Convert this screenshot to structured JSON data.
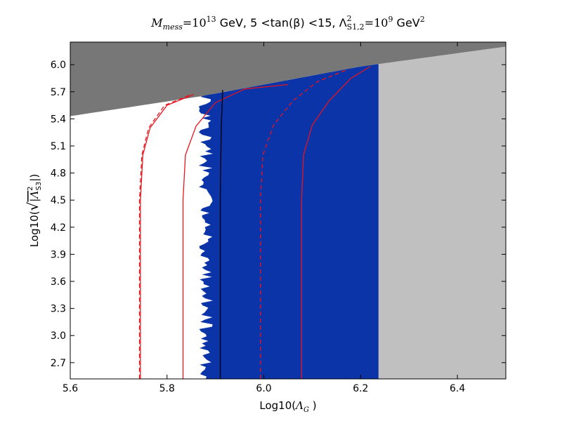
{
  "chart_data": {
    "type": "scatter",
    "title": "M_mess = 10^13 GeV, 5 < tan(β) < 15, Λ²_S1,2 = 10^9 GeV²",
    "title_parts": {
      "m_sym": "M",
      "m_sub": "mess",
      "eq1": "=10",
      "exp1": "13",
      "gev1": " GeV, 5 <tan(β) <15, Λ",
      "lam_sup": "2",
      "lam_sub": "S1,2",
      "eq2": "=10",
      "exp2": "9",
      "gev2": " GeV",
      "gev2_sup": "2"
    },
    "xlabel": "Log10(Λ_G )",
    "xlabel_parts": {
      "pre": "Log10(",
      "sym": "Λ",
      "sub": "G",
      "post": " )"
    },
    "ylabel": "Log10(√|Λ²_S3|)",
    "ylabel_parts": {
      "pre": "Log10(",
      "sym": "|Λ",
      "sup": "2",
      "sub": "S3",
      "post": "|)"
    },
    "xlim": [
      5.6,
      6.5
    ],
    "ylim": [
      2.52,
      6.25
    ],
    "xticks": [
      "5.6",
      "5.8",
      "6.0",
      "6.2",
      "6.4"
    ],
    "xtick_values": [
      5.6,
      5.8,
      6.0,
      6.2,
      6.4
    ],
    "yticks": [
      "2.7",
      "3.0",
      "3.3",
      "3.6",
      "3.9",
      "4.2",
      "4.5",
      "4.8",
      "5.1",
      "5.4",
      "5.7",
      "6.0"
    ],
    "ytick_values": [
      2.7,
      3.0,
      3.3,
      3.6,
      3.9,
      4.2,
      4.5,
      4.8,
      5.1,
      5.4,
      5.7,
      6.0
    ],
    "colors": {
      "excluded_dark": "#777777",
      "excluded_light": "#c0c0c0",
      "allowed_region": "#0a34a8",
      "contour": "#e8141e",
      "black_line": "#000000"
    },
    "regions": [
      {
        "color": "#777777",
        "boundary_x": [
          5.6,
          5.87,
          6.2,
          6.5
        ],
        "boundary_y": [
          5.43,
          5.65,
          5.98,
          6.2
        ]
      },
      {
        "color": "#c0c0c0",
        "x_min": 6.237,
        "x_max": 6.5
      },
      {
        "color": "#0a34a8",
        "x_left_min": 5.865,
        "x_left_max": 5.895,
        "x_right": 6.237
      }
    ],
    "series": [
      {
        "style": "solid",
        "color": "#e8141e",
        "x": [
          5.745,
          5.745,
          5.745,
          5.75,
          5.765,
          5.8,
          5.855
        ],
        "y": [
          2.52,
          3.5,
          4.5,
          5.0,
          5.3,
          5.55,
          5.67
        ]
      },
      {
        "style": "dashed",
        "color": "#e8141e",
        "x": [
          5.743,
          5.743,
          5.743,
          5.748,
          5.762,
          5.795,
          5.85
        ],
        "y": [
          2.52,
          3.5,
          4.5,
          5.0,
          5.3,
          5.55,
          5.67
        ]
      },
      {
        "style": "solid",
        "color": "#e8141e",
        "x": [
          5.833,
          5.833,
          5.833,
          5.838,
          5.86,
          5.9,
          5.96,
          6.05
        ],
        "y": [
          2.52,
          3.5,
          4.5,
          5.0,
          5.32,
          5.58,
          5.73,
          5.78
        ]
      },
      {
        "style": "dashed",
        "color": "#e8141e",
        "x": [
          5.993,
          5.993,
          5.993,
          5.998,
          6.02,
          6.06,
          6.11,
          6.17
        ],
        "y": [
          2.52,
          3.5,
          4.5,
          5.0,
          5.33,
          5.6,
          5.81,
          5.94
        ]
      },
      {
        "style": "solid",
        "color": "#e8141e",
        "x": [
          6.078,
          6.078,
          6.078,
          6.082,
          6.1,
          6.135,
          6.18,
          6.22
        ],
        "y": [
          2.52,
          3.5,
          4.5,
          5.0,
          5.33,
          5.6,
          5.85,
          5.98
        ]
      },
      {
        "style": "solid",
        "color": "#000000",
        "x": [
          5.91,
          5.91,
          5.912,
          5.915
        ],
        "y": [
          2.52,
          4.5,
          5.3,
          5.72
        ]
      }
    ],
    "grid": false,
    "legend": false
  }
}
